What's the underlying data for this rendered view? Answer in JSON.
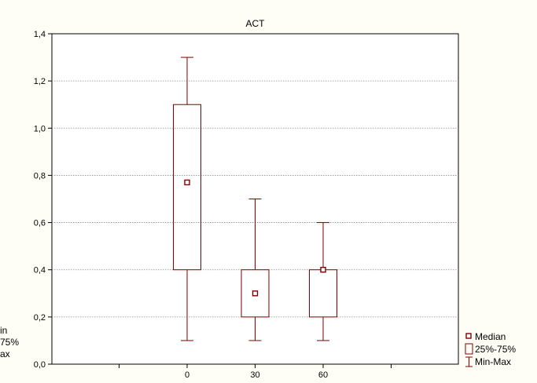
{
  "chart_data": {
    "type": "box",
    "title": "ACT",
    "xlabel": "",
    "ylabel": "",
    "categories": [
      "0",
      "30",
      "60"
    ],
    "boxes": [
      {
        "category": "0",
        "min": 0.1,
        "q1": 0.4,
        "median": 0.77,
        "q3": 1.1,
        "max": 1.3
      },
      {
        "category": "30",
        "min": 0.1,
        "q1": 0.2,
        "median": 0.3,
        "q3": 0.4,
        "max": 0.7
      },
      {
        "category": "60",
        "min": 0.1,
        "q1": 0.2,
        "median": 0.4,
        "q3": 0.4,
        "max": 0.6
      }
    ],
    "ylim": [
      0.0,
      1.4
    ],
    "yticks": [
      "0,0",
      "0,2",
      "0,4",
      "0,6",
      "0,8",
      "1,0",
      "1,2",
      "1,4"
    ],
    "grid": true,
    "legend": {
      "placement": "bottom-right",
      "entries": [
        "Median",
        "25%-75%",
        "Min-Max"
      ]
    },
    "left_legend_fragments": [
      "in",
      "75%",
      "ax"
    ],
    "colors": {
      "box": "#800000",
      "background": "#fffef6",
      "plot_area": "#ffffff",
      "grid": "#8c8c8c"
    }
  }
}
